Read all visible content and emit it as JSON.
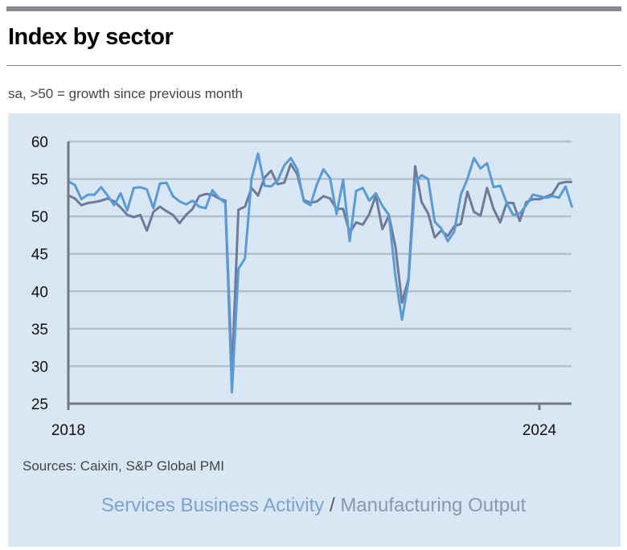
{
  "header": {
    "title": "Index by sector",
    "subtitle": "sa, >50 = growth since previous month"
  },
  "source": "Sources: Caixin, S&P Global PMI",
  "legend": {
    "services": "Services Business Activity",
    "separator": " / ",
    "manufacturing": "Manufacturing Output"
  },
  "chart_data": {
    "type": "line",
    "title": "Index by sector",
    "subtitle": "sa, >50 = growth since previous month",
    "x_start": "2018-01",
    "x_end": "2024-06",
    "frequency": "monthly",
    "x_tick_labels": [
      "2018",
      "2024"
    ],
    "y_ticks": [
      25,
      30,
      35,
      40,
      45,
      50,
      55,
      60
    ],
    "ylim": [
      25,
      60
    ],
    "grid": true,
    "legend_placement": "bottom",
    "colors": {
      "services": "#5b9bd5",
      "manufacturing": "#6b7b9a",
      "background": "#d9e6f4"
    },
    "series": [
      {
        "name": "Services Business Activity",
        "values": [
          54.7,
          54.2,
          52.3,
          52.9,
          52.9,
          53.9,
          52.8,
          51.5,
          53.1,
          50.8,
          53.8,
          53.9,
          53.6,
          51.1,
          54.4,
          54.5,
          52.7,
          52.0,
          51.6,
          52.1,
          51.3,
          51.1,
          53.5,
          52.5,
          51.8,
          26.5,
          43.0,
          44.4,
          55.0,
          58.4,
          54.1,
          54.0,
          54.8,
          56.8,
          57.8,
          56.3,
          52.0,
          51.5,
          54.3,
          56.3,
          55.1,
          50.3,
          54.9,
          46.7,
          53.4,
          53.8,
          52.1,
          53.1,
          51.4,
          50.2,
          42.0,
          36.2,
          41.4,
          54.5,
          55.5,
          55.0,
          49.3,
          48.4,
          46.7,
          48.0,
          52.9,
          55.0,
          57.8,
          56.4,
          57.1,
          53.9,
          54.1,
          51.8,
          50.2,
          50.4,
          51.5,
          52.9,
          52.7,
          52.5,
          52.7,
          52.5,
          54.0,
          51.2
        ]
      },
      {
        "name": "Manufacturing Output",
        "values": [
          52.8,
          52.4,
          51.5,
          51.8,
          51.9,
          52.1,
          52.4,
          52.0,
          51.2,
          50.2,
          49.9,
          50.2,
          48.1,
          50.6,
          51.3,
          50.7,
          50.2,
          49.1,
          50.2,
          51.0,
          52.7,
          53.0,
          52.9,
          52.4,
          52.1,
          29.0,
          50.9,
          51.3,
          53.8,
          52.8,
          55.2,
          56.1,
          54.3,
          54.5,
          57.0,
          55.6,
          52.2,
          51.8,
          52.0,
          52.7,
          52.4,
          51.0,
          51.0,
          47.8,
          49.2,
          48.9,
          50.3,
          52.8,
          48.3,
          50.1,
          46.0,
          38.5,
          41.7,
          56.7,
          51.9,
          50.4,
          47.2,
          48.1,
          47.4,
          48.7,
          49.0,
          53.3,
          50.6,
          50.1,
          53.8,
          51.0,
          49.2,
          51.8,
          51.8,
          49.4,
          51.9,
          52.3,
          52.3,
          52.6,
          53.0,
          54.4,
          54.6,
          54.6
        ]
      }
    ]
  }
}
